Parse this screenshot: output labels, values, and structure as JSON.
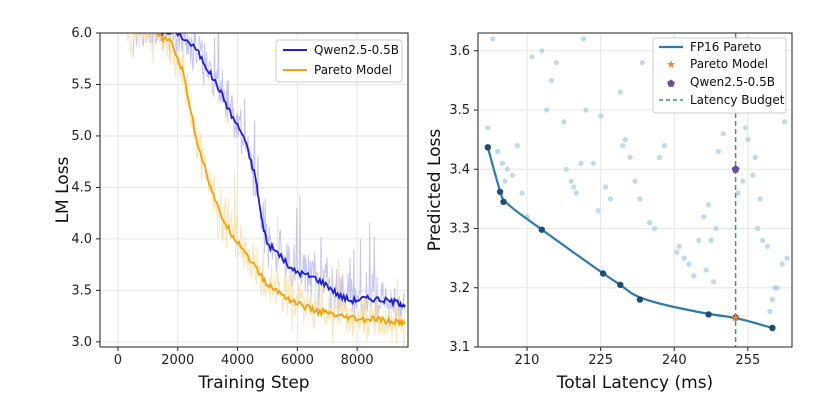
{
  "chart_data": [
    {
      "type": "line",
      "xlabel": "Training Step",
      "ylabel": "LM Loss",
      "xlim": [
        -600,
        9700
      ],
      "ylim": [
        2.95,
        6.0
      ],
      "xticks": [
        0,
        2000,
        4000,
        6000,
        8000
      ],
      "xtick_labels": [
        "0",
        "2000",
        "4000",
        "6000",
        "8000"
      ],
      "yticks": [
        3.0,
        3.5,
        4.0,
        4.5,
        5.0,
        5.5,
        6.0
      ],
      "ytick_labels": [
        "3.0",
        "3.5",
        "4.0",
        "4.5",
        "5.0",
        "5.5",
        "6.0"
      ],
      "grid": true,
      "legend_position": "top-right",
      "series": [
        {
          "name": "Qwen2.5-0.5B",
          "color": "#1f1fd6",
          "raw_color": "#b3b3f2",
          "x": [
            1400,
            2000,
            2600,
            3000,
            3400,
            3800,
            4200,
            4600,
            4800,
            5000,
            5400,
            5800,
            6200,
            6600,
            7000,
            7400,
            7800,
            8200,
            8600,
            9000,
            9400,
            9600
          ],
          "y": [
            6.0,
            6.0,
            5.85,
            5.65,
            5.45,
            5.2,
            5.0,
            4.6,
            4.2,
            3.95,
            3.85,
            3.7,
            3.66,
            3.62,
            3.55,
            3.45,
            3.4,
            3.42,
            3.42,
            3.4,
            3.38,
            3.36
          ]
        },
        {
          "name": "Pareto Model",
          "color": "#f5a20a",
          "raw_color": "#fbdca0",
          "x": [
            1200,
            1800,
            2200,
            2600,
            3000,
            3400,
            3800,
            4200,
            4600,
            5000,
            5400,
            5800,
            6200,
            6600,
            7000,
            7400,
            7800,
            8200,
            8600,
            9000,
            9400,
            9600
          ],
          "y": [
            6.0,
            5.9,
            5.6,
            5.0,
            4.6,
            4.25,
            4.05,
            3.9,
            3.72,
            3.55,
            3.48,
            3.4,
            3.35,
            3.3,
            3.28,
            3.24,
            3.23,
            3.21,
            3.22,
            3.2,
            3.19,
            3.18
          ]
        }
      ]
    },
    {
      "type": "scatter",
      "xlabel": "Total Latency (ms)",
      "ylabel": "Predicted Loss",
      "xlim": [
        200,
        264
      ],
      "ylim": [
        3.1,
        3.63
      ],
      "xticks": [
        210,
        225,
        240,
        255
      ],
      "xtick_labels": [
        "210",
        "225",
        "240",
        "255"
      ],
      "yticks": [
        3.1,
        3.2,
        3.3,
        3.4,
        3.5,
        3.6
      ],
      "ytick_labels": [
        "3.1",
        "3.2",
        "3.3",
        "3.4",
        "3.5",
        "3.6"
      ],
      "grid": true,
      "legend_position": "top-right",
      "series": [
        {
          "name": "FP16 Pareto",
          "color": "#2d7bad",
          "x": [
            202,
            204.5,
            205.2,
            213,
            225.5,
            229,
            233,
            247,
            252.5,
            260
          ],
          "y": [
            3.437,
            3.362,
            3.345,
            3.298,
            3.224,
            3.205,
            3.18,
            3.155,
            3.15,
            3.132
          ]
        },
        {
          "name": "Pareto Model",
          "color": "#f07f3c",
          "x": [
            252.5
          ],
          "y": [
            3.15
          ]
        },
        {
          "name": "Qwen2.5-0.5B",
          "color": "#6a4b9a",
          "x": [
            252.5
          ],
          "y": [
            3.4
          ]
        },
        {
          "name": "Latency Budget",
          "color": "#3f9a6e",
          "x": [
            252.5
          ]
        },
        {
          "name": "",
          "color": "#a9cde3",
          "x": [
            202,
            203,
            204,
            205,
            206,
            205.5,
            207,
            216,
            213,
            218,
            219,
            220,
            221,
            222,
            225,
            226,
            227,
            229,
            230,
            231,
            232,
            233,
            235,
            236,
            237,
            238,
            240,
            240.5,
            241,
            242,
            243,
            244,
            245,
            246,
            247,
            248,
            249,
            250,
            251,
            253,
            254,
            255,
            256,
            257,
            258,
            259,
            260,
            261,
            262,
            263,
            262.5,
            261.5,
            260.5,
            259.5,
            257.5,
            256.5,
            247.5,
            238.5,
            233.5,
            229.5,
            224.5,
            223.5,
            221.5,
            219.5,
            217.5,
            211,
            208,
            209,
            210,
            214,
            215,
            246.5,
            248.5,
            255.5,
            254.5
          ],
          "y": [
            3.47,
            3.62,
            3.43,
            3.41,
            3.4,
            3.38,
            3.39,
            3.58,
            3.6,
            3.4,
            3.38,
            3.36,
            3.41,
            3.5,
            3.49,
            3.37,
            3.35,
            3.53,
            3.45,
            3.42,
            3.38,
            3.35,
            3.31,
            3.3,
            3.42,
            3.44,
            3.52,
            3.26,
            3.27,
            3.25,
            3.24,
            3.22,
            3.28,
            3.32,
            3.34,
            3.21,
            3.43,
            3.46,
            3.51,
            3.36,
            3.38,
            3.45,
            3.39,
            3.3,
            3.28,
            3.27,
            3.18,
            3.2,
            3.24,
            3.25,
            3.48,
            3.53,
            3.2,
            3.16,
            3.35,
            3.42,
            3.28,
            3.56,
            3.58,
            3.44,
            3.33,
            3.41,
            3.62,
            3.37,
            3.48,
            3.59,
            3.44,
            3.36,
            3.32,
            3.5,
            3.55,
            3.23,
            3.3,
            3.52,
            3.47
          ]
        }
      ]
    }
  ]
}
